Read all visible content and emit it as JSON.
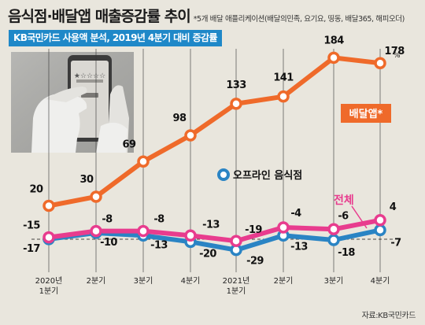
{
  "title": "음식점·배달앱 매출증감률 추이",
  "note": "*5개 배달 애플리케이션(배달의민족, 요기요, 띵동, 배달365, 해피오더)",
  "subtitle": "KB국민카드 사용액 분석, 2019년 4분기 대비 증감률",
  "source": "자료:KB국민카드",
  "colors": {
    "delivery": "#ef6a2a",
    "total": "#e83c8e",
    "offline": "#2a84c4",
    "background": "#e9e6dd"
  },
  "icon": "smartphone-rating-photo",
  "chart_data": {
    "type": "line",
    "categories": [
      "2020년\n1분기",
      "2분기",
      "3분기",
      "4분기",
      "2021년\n1분기",
      "2분기",
      "3분기",
      "4분기"
    ],
    "unit": "%",
    "series": [
      {
        "name": "배달앱*",
        "values": [
          20,
          30,
          69,
          98,
          133,
          141,
          184,
          178
        ]
      },
      {
        "name": "전체",
        "values": [
          -15,
          -8,
          -8,
          -13,
          -19,
          -4,
          -6,
          4
        ]
      },
      {
        "name": "오프라인 음식점",
        "values": [
          -17,
          -10,
          -13,
          -20,
          -29,
          -13,
          -18,
          -7
        ]
      }
    ],
    "ylim": [
      -40,
      200
    ],
    "grid": false,
    "legend": "inline labels"
  }
}
